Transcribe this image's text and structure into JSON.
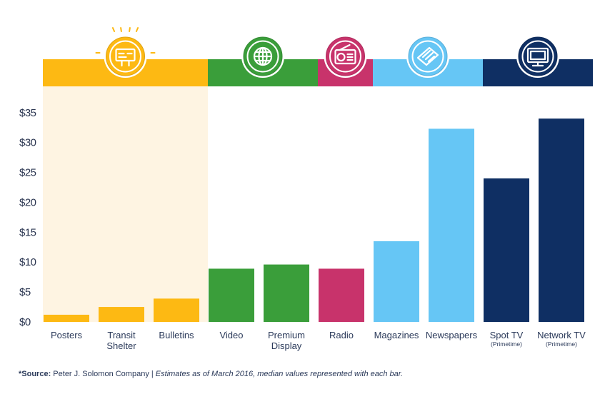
{
  "chart_data": {
    "type": "bar",
    "categories": [
      "Posters",
      "Transit Shelter",
      "Bulletins",
      "Video",
      "Premium Display",
      "Radio",
      "Magazines",
      "Newspapers",
      "Spot TV",
      "Network TV"
    ],
    "category_lines": [
      [
        "Posters"
      ],
      [
        "Transit",
        "Shelter"
      ],
      [
        "Bulletins"
      ],
      [
        "Video"
      ],
      [
        "Premium",
        "Display"
      ],
      [
        "Radio"
      ],
      [
        "Magazines"
      ],
      [
        "Newspapers"
      ],
      [
        "Spot TV"
      ],
      [
        "Network TV"
      ]
    ],
    "category_sublabels": [
      "",
      "",
      "",
      "",
      "",
      "",
      "",
      "",
      "(Primetime)",
      "(Primetime)"
    ],
    "values": [
      1.2,
      2.5,
      3.9,
      8.9,
      9.6,
      8.9,
      13.5,
      32.3,
      24.0,
      34.0
    ],
    "bar_colors": [
      "#FDB913",
      "#FDB913",
      "#FDB913",
      "#3A9E3A",
      "#3A9E3A",
      "#C8336B",
      "#66C6F5",
      "#66C6F5",
      "#0F2F63",
      "#0F2F63"
    ],
    "yticks": [
      "$0",
      "$5",
      "$10",
      "$15",
      "$20",
      "$25",
      "$30",
      "$35"
    ],
    "ylim": [
      0,
      37
    ],
    "grid": false,
    "groups": [
      {
        "name": "out-of-home",
        "icon": "billboard-icon",
        "color": "#FDB913",
        "shade": "#FEF4E2",
        "bars": [
          0,
          1,
          2
        ]
      },
      {
        "name": "digital",
        "icon": "globe-icon",
        "color": "#3A9E3A",
        "bars": [
          3,
          4
        ]
      },
      {
        "name": "radio",
        "icon": "radio-icon",
        "color": "#C8336B",
        "bars": [
          5
        ]
      },
      {
        "name": "print",
        "icon": "newspaper-icon",
        "color": "#66C6F5",
        "bars": [
          6,
          7
        ]
      },
      {
        "name": "television",
        "icon": "tv-icon",
        "color": "#0F2F63",
        "bars": [
          8,
          9
        ]
      }
    ]
  },
  "source": {
    "label": "*Source:",
    "company": " Peter J. Solomon Company | ",
    "note": "Estimates as of March 2016, median values represented with each bar."
  }
}
